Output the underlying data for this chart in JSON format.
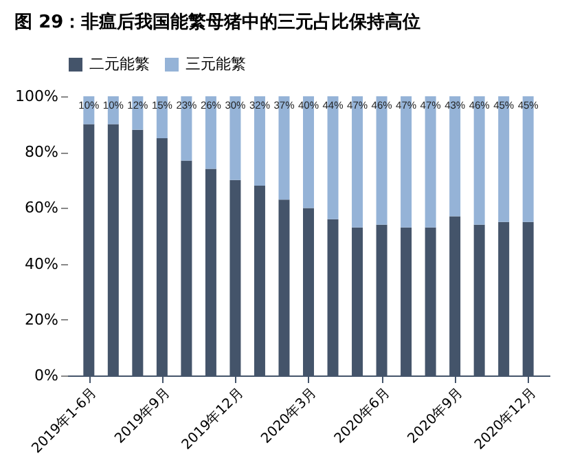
{
  "chart_data": {
    "type": "bar",
    "stacked": true,
    "title": "图 29：非瘟后我国能繁母猪中的三元占比保持高位",
    "categories": [
      "2019年1-6月",
      null,
      null,
      "2019年9月",
      null,
      null,
      "2019年12月",
      null,
      null,
      "2020年3月",
      null,
      null,
      "2020年6月",
      null,
      null,
      "2020年9月",
      null,
      null,
      "2020年12月"
    ],
    "series": [
      {
        "name": "二元能繁",
        "color": "#44546a",
        "values": [
          90,
          90,
          88,
          85,
          77,
          74,
          70,
          68,
          63,
          60,
          56,
          53,
          54,
          53,
          53,
          57,
          54,
          55,
          55
        ]
      },
      {
        "name": "三元能繁",
        "color": "#95b3d7",
        "values": [
          10,
          10,
          12,
          15,
          23,
          26,
          30,
          32,
          37,
          40,
          44,
          47,
          46,
          47,
          47,
          43,
          46,
          45,
          45
        ],
        "value_labels": [
          "10%",
          "10%",
          "12%",
          "15%",
          "23%",
          "26%",
          "30%",
          "32%",
          "37%",
          "40%",
          "44%",
          "47%",
          "46%",
          "47%",
          "47%",
          "43%",
          "46%",
          "45%",
          "45%"
        ]
      }
    ],
    "ylim": [
      0,
      100
    ],
    "yticks": [
      {
        "value": 0,
        "label": "0%"
      },
      {
        "value": 20,
        "label": "20%"
      },
      {
        "value": 40,
        "label": "40%"
      },
      {
        "value": 60,
        "label": "60%"
      },
      {
        "value": 80,
        "label": "80%"
      },
      {
        "value": 100,
        "label": "100%"
      }
    ],
    "grid": false,
    "legend": "top"
  }
}
